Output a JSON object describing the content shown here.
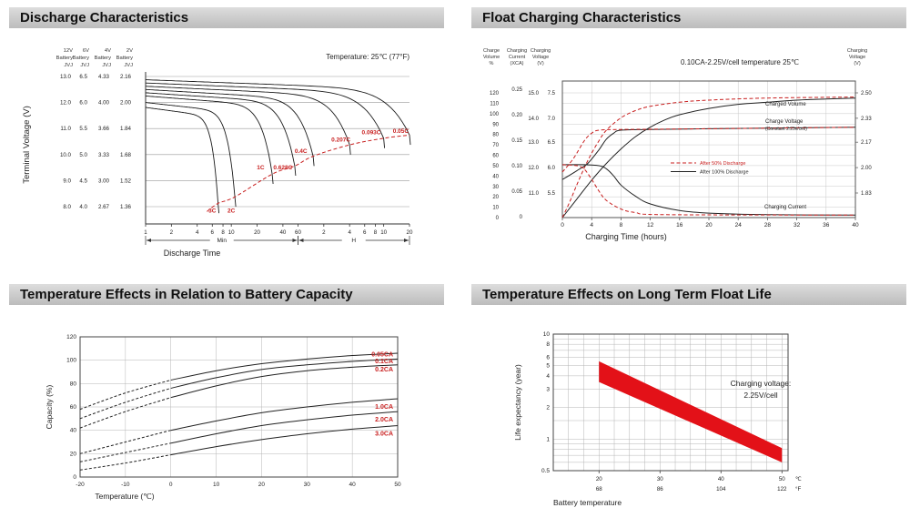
{
  "chart_data": [
    {
      "type": "line",
      "title": "Discharge Characteristics",
      "temperature_note": "Temperature: 25℃ (77°F)",
      "xlabel": "Discharge Time",
      "ylabel": "Terminal Voltage (V)",
      "x_unit_sections": [
        "Min",
        "H"
      ],
      "t_max_min": 1200,
      "v_range": [
        1.36,
        2.16
      ],
      "grid_v": [
        2.16,
        2.0,
        1.84,
        1.68,
        1.52,
        1.36
      ],
      "y_columns": [
        {
          "header": [
            "12V",
            "Battery",
            "JVJ"
          ],
          "ticks": [
            "13.0",
            "12.0",
            "11.0",
            "10.0",
            "9.0",
            "8.0"
          ]
        },
        {
          "header": [
            "6V",
            "Battery",
            "JVJ"
          ],
          "ticks": [
            "6.5",
            "6.0",
            "5.5",
            "5.0",
            "4.5",
            "4.0"
          ]
        },
        {
          "header": [
            "4V",
            "Battery",
            "JVJ"
          ],
          "ticks": [
            "4.33",
            "4.00",
            "3.66",
            "3.33",
            "3.00",
            "2.67"
          ]
        },
        {
          "header": [
            "2V",
            "Battery",
            "JVJ"
          ],
          "ticks": [
            "2.16",
            "2.00",
            "1.84",
            "1.68",
            "1.52",
            "1.36"
          ]
        }
      ],
      "x_ticks_min": [
        1,
        2,
        4,
        6,
        8,
        10,
        20,
        40,
        60
      ],
      "x_ticks_hours": [
        2,
        4,
        6,
        8,
        10,
        20
      ],
      "curves": [
        {
          "label": "0.05C",
          "t_end": 1200,
          "v_start": 2.14,
          "v_knee": 1.8
        },
        {
          "label": "0.093C",
          "t_end": 600,
          "v_start": 2.12,
          "v_knee": 1.78
        },
        {
          "label": "0.207C",
          "t_end": 240,
          "v_start": 2.1,
          "v_knee": 1.74
        },
        {
          "label": "0.4C",
          "t_end": 90,
          "v_start": 2.08,
          "v_knee": 1.67
        },
        {
          "label": "0.628C",
          "t_end": 55,
          "v_start": 2.06,
          "v_knee": 1.61
        },
        {
          "label": "1C",
          "t_end": 30,
          "v_start": 2.04,
          "v_knee": 1.56
        },
        {
          "label": "2C",
          "t_end": 11,
          "v_start": 2.0,
          "v_knee": 1.42
        },
        {
          "label": "3C",
          "t_end": 7,
          "v_start": 1.97,
          "v_knee": 1.38
        }
      ],
      "knee_line_start": {
        "t": 5.2,
        "v": 1.33
      },
      "rate_labels": [
        {
          "text": "3C",
          "t": 6,
          "v": 1.335
        },
        {
          "text": "2C",
          "t": 10,
          "v": 1.335
        },
        {
          "text": "1C",
          "t": 22,
          "v": 1.6
        },
        {
          "text": "0.628C",
          "t": 40,
          "v": 1.6
        },
        {
          "text": "0.4C",
          "t": 65,
          "v": 1.7
        },
        {
          "text": "0.207C",
          "t": 190,
          "v": 1.77
        },
        {
          "text": "0.093C",
          "t": 430,
          "v": 1.815
        },
        {
          "text": "0.05C",
          "t": 950,
          "v": 1.825
        }
      ],
      "accent_color": "#c81f1f"
    },
    {
      "type": "line",
      "title": "Float Charging Characteristics",
      "condition_note": "0.10CA-2.25V/cell  temperature 25℃",
      "xlabel": "Charging Time (hours)",
      "x_max_hours": 40,
      "x_ticks": [
        0,
        4,
        8,
        12,
        16,
        20,
        24,
        28,
        32,
        36,
        40
      ],
      "axes": {
        "volume": {
          "header": [
            "Charge",
            "Volume",
            "%"
          ],
          "ticks": [
            "120",
            "110",
            "100",
            "90",
            "80",
            "70",
            "60",
            "50",
            "40",
            "30",
            "20",
            "10",
            "0"
          ],
          "range": [
            0,
            120
          ]
        },
        "current": {
          "header": [
            "Charging",
            "Current",
            "(XCA)"
          ],
          "ticks": [
            "0.25",
            "0.20",
            "0.15",
            "0.10",
            "0.05",
            "0"
          ],
          "range": [
            0,
            0.25
          ]
        },
        "voltage_left": {
          "header": [
            "Charging",
            "Voltage",
            "(V)"
          ],
          "ticks_12v": [
            "15.0",
            "14.0",
            "13.0",
            "12.0",
            "11.0"
          ],
          "ticks_6v": [
            "7.5",
            "7.0",
            "6.5",
            "6.0",
            "5.5"
          ]
        },
        "voltage_right": {
          "header": [
            "Charging",
            "Voltage",
            "(V)"
          ],
          "ticks": [
            "2.50",
            "2.33",
            "2.17",
            "2.00",
            "1.83"
          ],
          "range": [
            1.83,
            2.5
          ]
        }
      },
      "legend": [
        {
          "label": "After  50% Discharge",
          "style": "dashed",
          "color": "#c81f1f"
        },
        {
          "label": "After 100% Discharge",
          "style": "solid",
          "color": "#222222"
        }
      ],
      "annotations": {
        "charged_volume": "Charged Volume",
        "charge_voltage_line1": "Charge Voltage",
        "charge_voltage_line2": "(Constant 2.25v/cell)",
        "charging_current": "Charging Current"
      },
      "series": [
        {
          "name": "charged_volume_100",
          "axis": "volume",
          "style": "solid",
          "points": [
            [
              0,
              0
            ],
            [
              2,
              18
            ],
            [
              4,
              36
            ],
            [
              6,
              52
            ],
            [
              8,
              66
            ],
            [
              10,
              78
            ],
            [
              12,
              87
            ],
            [
              14,
              94
            ],
            [
              16,
              99
            ],
            [
              20,
              105
            ],
            [
              24,
              109
            ],
            [
              28,
              111
            ],
            [
              32,
              113
            ],
            [
              36,
              114
            ],
            [
              40,
              115
            ]
          ]
        },
        {
          "name": "charged_volume_50",
          "axis": "volume",
          "style": "dashed",
          "points": [
            [
              0,
              0
            ],
            [
              1,
              15
            ],
            [
              2,
              32
            ],
            [
              3,
              48
            ],
            [
              4,
              62
            ],
            [
              5,
              74
            ],
            [
              6,
              84
            ],
            [
              8,
              96
            ],
            [
              10,
              103
            ],
            [
              12,
              107
            ],
            [
              16,
              111
            ],
            [
              20,
              113
            ],
            [
              28,
              115
            ],
            [
              40,
              116
            ]
          ]
        },
        {
          "name": "charge_voltage_100",
          "axis": "voltage",
          "style": "solid",
          "points": [
            [
              0,
              1.92
            ],
            [
              2,
              1.98
            ],
            [
              3.5,
              2.03
            ],
            [
              5,
              2.12
            ],
            [
              6,
              2.19
            ],
            [
              7,
              2.23
            ],
            [
              8,
              2.25
            ],
            [
              12,
              2.255
            ],
            [
              20,
              2.26
            ],
            [
              30,
              2.265
            ],
            [
              40,
              2.27
            ]
          ]
        },
        {
          "name": "charge_voltage_50",
          "axis": "voltage",
          "style": "dashed",
          "points": [
            [
              0,
              1.97
            ],
            [
              1.5,
              2.06
            ],
            [
              3,
              2.18
            ],
            [
              4,
              2.23
            ],
            [
              5,
              2.25
            ],
            [
              8,
              2.255
            ],
            [
              20,
              2.26
            ],
            [
              40,
              2.27
            ]
          ]
        },
        {
          "name": "charging_current_100",
          "axis": "current",
          "style": "solid",
          "points": [
            [
              0,
              0.102
            ],
            [
              3,
              0.102
            ],
            [
              5,
              0.1
            ],
            [
              6,
              0.094
            ],
            [
              7,
              0.08
            ],
            [
              8,
              0.062
            ],
            [
              10,
              0.04
            ],
            [
              12,
              0.025
            ],
            [
              16,
              0.012
            ],
            [
              20,
              0.007
            ],
            [
              28,
              0.004
            ],
            [
              40,
              0.003
            ]
          ]
        },
        {
          "name": "charging_current_50",
          "axis": "current",
          "style": "dashed",
          "points": [
            [
              0,
              0.102
            ],
            [
              2,
              0.1
            ],
            [
              3,
              0.093
            ],
            [
              4,
              0.073
            ],
            [
              5,
              0.05
            ],
            [
              6,
              0.032
            ],
            [
              8,
              0.015
            ],
            [
              10,
              0.008
            ],
            [
              14,
              0.004
            ],
            [
              40,
              0.003
            ]
          ]
        }
      ],
      "accent_color": "#c81f1f"
    },
    {
      "type": "line",
      "title": "Temperature Effects in Relation to Battery Capacity",
      "xlabel": "Temperature (℃)",
      "ylabel": "Capacity (%)",
      "x_range": [
        -20,
        50
      ],
      "y_range": [
        0,
        120
      ],
      "x_ticks": [
        -20,
        -10,
        0,
        10,
        20,
        30,
        40,
        50
      ],
      "y_ticks": [
        0,
        20,
        40,
        60,
        80,
        100,
        120
      ],
      "dashed_below_c": 0,
      "x": [
        -20,
        -10,
        0,
        10,
        20,
        30,
        40,
        50
      ],
      "series": [
        {
          "name": "0.05CA",
          "values": [
            58,
            72,
            83,
            91,
            97,
            101,
            104,
            106
          ],
          "label_v": 105
        },
        {
          "name": "0.1CA",
          "values": [
            50,
            64,
            76,
            85,
            92,
            96,
            99,
            101
          ],
          "label_v": 99
        },
        {
          "name": "0.2CA",
          "values": [
            42,
            56,
            68,
            78,
            86,
            91,
            94,
            96
          ],
          "label_v": 92
        },
        {
          "name": "1.0CA",
          "values": [
            20,
            30,
            40,
            48,
            55,
            60,
            64,
            67
          ],
          "label_v": 60
        },
        {
          "name": "2.0CA",
          "values": [
            13,
            21,
            29,
            37,
            44,
            49,
            53,
            56
          ],
          "label_v": 49
        },
        {
          "name": "3.0CA",
          "values": [
            6,
            12,
            19,
            26,
            32,
            37,
            41,
            44
          ],
          "label_v": 37
        }
      ],
      "accent_color": "#c81f1f"
    },
    {
      "type": "area",
      "title": "Temperature Effects on Long Term Float Life",
      "xlabel": "Battery temperature",
      "ylabel": "Life expectancy (year)",
      "annotation": [
        "Charging voltage:",
        "2.25V/cell"
      ],
      "x_range": [
        12.5,
        51
      ],
      "y_range_log": [
        0.5,
        10
      ],
      "x_grid_step": 2.5,
      "x_ticks_c": [
        20,
        30,
        40,
        50
      ],
      "x_ticks_f": [
        68,
        86,
        104,
        122
      ],
      "unit_c": "℃",
      "unit_f": "°F",
      "y_ticks": [
        "10",
        "8",
        "6",
        "5",
        "4",
        "3",
        "2",
        "1",
        "0.5"
      ],
      "y_grid": [
        0.5,
        0.6,
        0.7,
        0.8,
        0.9,
        1,
        1.5,
        2,
        3,
        4,
        5,
        6,
        7,
        8,
        9,
        10
      ],
      "band": {
        "x": [
          20,
          50
        ],
        "upper": [
          5.5,
          0.82
        ],
        "lower": [
          3.5,
          0.6
        ],
        "color": "#e31118"
      }
    }
  ]
}
